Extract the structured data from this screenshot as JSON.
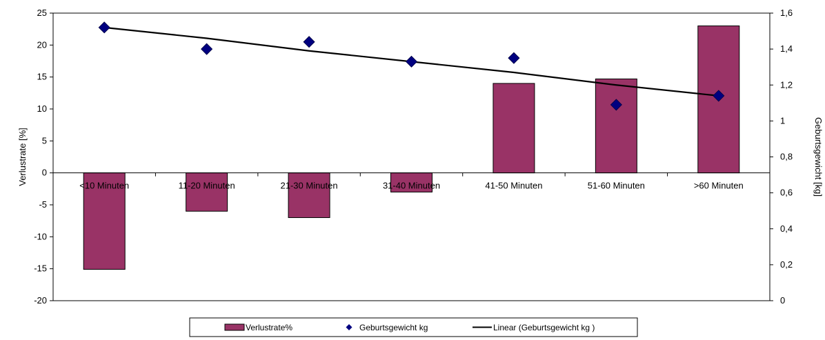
{
  "chart_data": {
    "type": "bar",
    "categories": [
      "<10 Minuten",
      "11-20 Minuten",
      "21-30 Minuten",
      "31-40 Minuten",
      "41-50 Minuten",
      "51-60 Minuten",
      ">60 Minuten"
    ],
    "series": [
      {
        "name": "Verlustrate%",
        "type": "bar",
        "axis": "left",
        "color": "#993366",
        "values": [
          -15.1,
          -6.0,
          -7.0,
          -3.0,
          14.0,
          14.7,
          23.0
        ]
      },
      {
        "name": "Geburtsgewicht kg",
        "type": "scatter",
        "axis": "right",
        "color": "#000080",
        "marker": "diamond",
        "values": [
          1.52,
          1.4,
          1.44,
          1.33,
          1.35,
          1.09,
          1.14
        ]
      },
      {
        "name": "Linear (Geburtsgewicht kg )",
        "type": "line",
        "axis": "right",
        "color": "#000000",
        "values": [
          1.52,
          1.46,
          1.39,
          1.33,
          1.27,
          1.2,
          1.14
        ]
      }
    ],
    "ylabel": "Verlustrate [%]",
    "y2label": "Geburtsgewicht [kg]",
    "ylim": [
      -20,
      25
    ],
    "yticks": [
      -20,
      -15,
      -10,
      -5,
      0,
      5,
      10,
      15,
      20,
      25
    ],
    "y2lim": [
      0,
      1.6
    ],
    "y2ticks": [
      "0",
      "0,2",
      "0,4",
      "0,6",
      "0,8",
      "1",
      "1,2",
      "1,4",
      "1,6"
    ],
    "grid": false,
    "legend_position": "bottom"
  }
}
